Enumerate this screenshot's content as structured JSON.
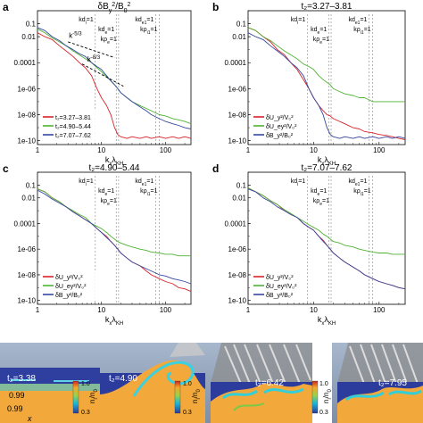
{
  "panel_letters": [
    "a",
    "b",
    "c",
    "d"
  ],
  "x_ticks": [
    {
      "v": 1,
      "label": "1"
    },
    {
      "v": 10,
      "label": "10"
    },
    {
      "v": 100,
      "label": "100"
    }
  ],
  "y_ticks": [
    {
      "v": 0.1,
      "label": "0.1"
    },
    {
      "v": 0.01,
      "label": "0.01"
    },
    {
      "v": 0.0001,
      "label": "0.0001"
    },
    {
      "v": 1e-06,
      "label": "1e-06"
    },
    {
      "v": 1e-08,
      "label": "1e-08"
    },
    {
      "v": 1e-10,
      "label": "1e-10"
    }
  ],
  "scale_lines": [
    {
      "label": "kd",
      "sub": "i",
      "rest": "=1",
      "x": 8
    },
    {
      "label": "kd",
      "sub": "e",
      "rest": "=1",
      "x": 17
    },
    {
      "label": "kρ",
      "sub": "e",
      "rest": "=1",
      "x": 18.5
    },
    {
      "label": "kd",
      "sub": "e1",
      "rest": "=1",
      "x": 70
    },
    {
      "label": "kρ",
      "sub": "i1",
      "rest": "=1",
      "x": 80
    }
  ],
  "slope_labels": [
    {
      "text": "k",
      "sup": "-5/3"
    },
    {
      "text": "k",
      "sup": "-8/3"
    }
  ],
  "colors": {
    "red": "#d8232a",
    "green": "#4fb234",
    "blue": "#3647a0"
  },
  "chart_data": [
    {
      "type": "line",
      "panel": "a",
      "title": "δB",
      "title_sub": "y",
      "title_sup": "2",
      "title_rest": "/B",
      "title_rest_sub": "0",
      "title_rest_sup": "2",
      "xlabel": "k",
      "xlabel_sub": "x",
      "xlabel_rest": "λ",
      "xlabel_rest_sub": "KH",
      "log_x": true,
      "log_y": true,
      "xlim": [
        1,
        250
      ],
      "ylim": [
        5e-11,
        1
      ],
      "legend": "bottom-left",
      "series": [
        {
          "name": "t₂=3.27–3.81",
          "color": "red",
          "x": [
            1,
            1.3,
            1.7,
            2.2,
            2.8,
            3.6,
            4.5,
            5.6,
            7,
            8.5,
            10,
            12,
            14,
            16,
            18,
            20,
            25,
            30,
            40,
            50,
            60,
            80,
            100,
            130,
            160,
            200,
            250
          ],
          "y": [
            0.02,
            0.01,
            0.006,
            0.002,
            0.0008,
            0.0003,
            0.0001,
            4e-05,
            1e-05,
            1e-06,
            2e-07,
            5e-08,
            1e-08,
            1e-09,
            3e-10,
            2e-10,
            1.5e-10,
            2e-10,
            1.5e-10,
            2e-10,
            1.5e-10,
            2e-10,
            1.5e-10,
            2e-10,
            1.5e-10,
            2e-10,
            1.5e-10
          ]
        },
        {
          "name": "t₂=4.90–5.44",
          "color": "green",
          "x": [
            1,
            1.3,
            1.7,
            2.2,
            2.8,
            3.6,
            4.5,
            5.6,
            7,
            8.5,
            10,
            12,
            14,
            16,
            18,
            20,
            25,
            30,
            40,
            50,
            60,
            80,
            100,
            130,
            160,
            200,
            250
          ],
          "y": [
            0.04,
            0.02,
            0.008,
            0.004,
            0.002,
            0.0008,
            0.0004,
            0.0002,
            0.0001,
            4e-05,
            2e-05,
            8e-06,
            4e-06,
            2e-06,
            1e-06,
            5e-07,
            2e-07,
            1e-07,
            5e-08,
            3e-08,
            2e-08,
            1e-08,
            8e-09,
            5e-09,
            4e-09,
            3e-09,
            2e-09
          ]
        },
        {
          "name": "t₂=7.07–7.62",
          "color": "blue",
          "x": [
            1,
            1.3,
            1.7,
            2.2,
            2.8,
            3.6,
            4.5,
            5.6,
            7,
            8.5,
            10,
            12,
            14,
            16,
            18,
            20,
            25,
            30,
            40,
            50,
            60,
            80,
            100,
            130,
            160,
            200,
            250
          ],
          "y": [
            0.05,
            0.03,
            0.01,
            0.005,
            0.002,
            0.001,
            0.0005,
            0.0003,
            0.0001,
            5e-05,
            3e-05,
            1e-05,
            4e-06,
            2e-06,
            1e-06,
            5e-07,
            2e-07,
            1e-07,
            4e-08,
            2e-08,
            1e-08,
            5e-09,
            3e-09,
            2e-09,
            1.5e-09,
            1e-09,
            8e-10
          ]
        }
      ],
      "slope_guides": true
    },
    {
      "type": "line",
      "panel": "b",
      "title": "t₂=3.27–3.81",
      "xlabel": "k",
      "xlabel_sub": "x",
      "xlabel_rest": "λ",
      "xlabel_rest_sub": "KH",
      "log_x": true,
      "log_y": true,
      "xlim": [
        1,
        250
      ],
      "ylim": [
        5e-11,
        1
      ],
      "legend": "bottom-left",
      "series": [
        {
          "name": "δU_y²/V₀²",
          "color": "red",
          "x": [
            1,
            1.3,
            1.7,
            2.2,
            2.8,
            3.6,
            4.5,
            5.6,
            7,
            8.5,
            10,
            12,
            14,
            16,
            18,
            20,
            25,
            30,
            40,
            50,
            60,
            80,
            100,
            130,
            160,
            200,
            250
          ],
          "y": [
            0.05,
            0.03,
            0.01,
            0.004,
            0.001,
            0.0004,
            0.0001,
            3e-05,
            5e-06,
            1e-06,
            2e-07,
            5e-08,
            2e-08,
            1e-08,
            8e-09,
            5e-09,
            3e-09,
            2e-09,
            1e-09,
            8e-10,
            5e-10,
            4e-10,
            3e-10,
            2.5e-10,
            2e-10,
            1.5e-10,
            1.2e-10
          ]
        },
        {
          "name": "δU_ey²/V₀²",
          "color": "green",
          "x": [
            1,
            1.3,
            1.7,
            2.2,
            2.8,
            3.6,
            4.5,
            5.6,
            7,
            8.5,
            10,
            12,
            14,
            16,
            18,
            20,
            25,
            30,
            40,
            50,
            60,
            80,
            100,
            130,
            160,
            200,
            250
          ],
          "y": [
            0.05,
            0.03,
            0.01,
            0.005,
            0.002,
            0.0008,
            0.0004,
            0.0002,
            8e-05,
            5e-05,
            3e-05,
            1e-05,
            5e-06,
            3e-06,
            2e-06,
            1e-06,
            6e-07,
            4e-07,
            3e-07,
            2e-07,
            2e-07,
            1e-07,
            1e-07,
            1e-07,
            1e-07,
            1e-07,
            1e-07
          ]
        },
        {
          "name": "δB_y²/B₀²",
          "color": "blue",
          "x": [
            1,
            1.3,
            1.7,
            2.2,
            2.8,
            3.6,
            4.5,
            5.6,
            7,
            8.5,
            10,
            12,
            14,
            16,
            18,
            20,
            25,
            30,
            40,
            50,
            60,
            80,
            100,
            130,
            160,
            200,
            250
          ],
          "y": [
            0.02,
            0.01,
            0.006,
            0.002,
            0.0008,
            0.0003,
            0.0001,
            4e-05,
            1e-05,
            1e-06,
            2e-07,
            5e-08,
            1e-08,
            1e-09,
            3e-10,
            2e-10,
            1.5e-10,
            2e-10,
            1.5e-10,
            2e-10,
            1.5e-10,
            2e-10,
            1.5e-10,
            2e-10,
            1.5e-10,
            2e-10,
            1.5e-10
          ]
        }
      ]
    },
    {
      "type": "line",
      "panel": "c",
      "title": "t₂=4.90–5.44",
      "xlabel": "k",
      "xlabel_sub": "x",
      "xlabel_rest": "λ",
      "xlabel_rest_sub": "KH",
      "log_x": true,
      "log_y": true,
      "xlim": [
        1,
        250
      ],
      "ylim": [
        5e-11,
        1
      ],
      "legend": "bottom-left",
      "series": [
        {
          "name": "δU_y²/V₀²",
          "color": "red",
          "x": [
            1,
            1.3,
            1.7,
            2.2,
            2.8,
            3.6,
            4.5,
            5.6,
            7,
            8.5,
            10,
            12,
            14,
            16,
            18,
            20,
            25,
            30,
            40,
            50,
            60,
            80,
            100,
            130,
            160,
            200,
            250
          ],
          "y": [
            0.05,
            0.03,
            0.01,
            0.005,
            0.002,
            0.0008,
            0.0004,
            0.0002,
            0.0001,
            4e-05,
            2e-05,
            1e-05,
            4e-06,
            2e-06,
            1e-06,
            5e-07,
            2e-07,
            1e-07,
            5e-08,
            2e-08,
            1e-08,
            5e-09,
            3e-09,
            2e-09,
            1e-09,
            8e-10,
            5e-10
          ]
        },
        {
          "name": "δU_ey²/V₀²",
          "color": "green",
          "x": [
            1,
            1.3,
            1.7,
            2.2,
            2.8,
            3.6,
            4.5,
            5.6,
            7,
            8.5,
            10,
            12,
            14,
            16,
            18,
            20,
            25,
            30,
            40,
            50,
            60,
            80,
            100,
            130,
            160,
            200,
            250
          ],
          "y": [
            0.05,
            0.03,
            0.01,
            0.005,
            0.002,
            0.001,
            0.0005,
            0.0003,
            0.0001,
            6e-05,
            4e-05,
            2e-05,
            1e-05,
            6e-06,
            4e-06,
            3e-06,
            2e-06,
            1.5e-06,
            1e-06,
            8e-07,
            6e-07,
            5e-07,
            4e-07,
            4e-07,
            3e-07,
            3e-07,
            3e-07
          ]
        },
        {
          "name": "δB_y²/B₀²",
          "color": "blue",
          "x": [
            1,
            1.3,
            1.7,
            2.2,
            2.8,
            3.6,
            4.5,
            5.6,
            7,
            8.5,
            10,
            12,
            14,
            16,
            18,
            20,
            25,
            30,
            40,
            50,
            60,
            80,
            100,
            130,
            160,
            200,
            250
          ],
          "y": [
            0.04,
            0.02,
            0.008,
            0.004,
            0.002,
            0.0008,
            0.0004,
            0.0002,
            0.0001,
            4e-05,
            2e-05,
            8e-06,
            4e-06,
            2e-06,
            1e-06,
            5e-07,
            2e-07,
            1e-07,
            5e-08,
            3e-08,
            2e-08,
            1e-08,
            8e-09,
            5e-09,
            4e-09,
            3e-09,
            2e-09
          ]
        }
      ]
    },
    {
      "type": "line",
      "panel": "d",
      "title": "t₂=7.07–7.62",
      "xlabel": "k",
      "xlabel_sub": "x",
      "xlabel_rest": "λ",
      "xlabel_rest_sub": "KH",
      "log_x": true,
      "log_y": true,
      "xlim": [
        1,
        250
      ],
      "ylim": [
        5e-11,
        1
      ],
      "legend": "bottom-left",
      "series": [
        {
          "name": "δU_y²/V₀²",
          "color": "red",
          "x": [
            1,
            1.3,
            1.7,
            2.2,
            2.8,
            3.6,
            4.5,
            5.6,
            7,
            8.5,
            10,
            12,
            14,
            16,
            18,
            20,
            25,
            30,
            40,
            50,
            60,
            80,
            100,
            130,
            160,
            200,
            250
          ],
          "y": [
            0.06,
            0.03,
            0.015,
            0.006,
            0.003,
            0.001,
            0.0005,
            0.0003,
            0.0001,
            5e-05,
            3e-05,
            1e-05,
            5e-06,
            2e-06,
            1e-06,
            5e-07,
            2e-07,
            1e-07,
            4e-08,
            2e-08,
            1e-08,
            5e-09,
            3e-09,
            2e-09,
            1.5e-09,
            1e-09,
            8e-10
          ]
        },
        {
          "name": "δU_ey²/V₀²",
          "color": "green",
          "x": [
            1,
            1.3,
            1.7,
            2.2,
            2.8,
            3.6,
            4.5,
            5.6,
            7,
            8.5,
            10,
            12,
            14,
            16,
            18,
            20,
            25,
            30,
            40,
            50,
            60,
            80,
            100,
            130,
            160,
            200,
            250
          ],
          "y": [
            0.06,
            0.03,
            0.015,
            0.006,
            0.003,
            0.0012,
            0.0006,
            0.0003,
            0.00015,
            8e-05,
            5e-05,
            3e-05,
            1.5e-05,
            1e-05,
            6e-06,
            4e-06,
            3e-06,
            2e-06,
            1.5e-06,
            1e-06,
            8e-07,
            6e-07,
            5e-07,
            5e-07,
            4e-07,
            4e-07,
            4e-07
          ]
        },
        {
          "name": "δB_y²/B₀²",
          "color": "blue",
          "x": [
            1,
            1.3,
            1.7,
            2.2,
            2.8,
            3.6,
            4.5,
            5.6,
            7,
            8.5,
            10,
            12,
            14,
            16,
            18,
            20,
            25,
            30,
            40,
            50,
            60,
            80,
            100,
            130,
            160,
            200,
            250
          ],
          "y": [
            0.05,
            0.03,
            0.01,
            0.005,
            0.002,
            0.001,
            0.0005,
            0.0003,
            0.0001,
            5e-05,
            3e-05,
            1e-05,
            4e-06,
            2e-06,
            1e-06,
            5e-07,
            2e-07,
            1e-07,
            4e-08,
            2e-08,
            1e-08,
            5e-09,
            3e-09,
            2e-09,
            1.5e-09,
            1e-09,
            8e-10
          ]
        }
      ]
    }
  ],
  "snapshots": [
    {
      "time_label": "t₂=3.38"
    },
    {
      "time_label": "t₂=4.90"
    },
    {
      "time_label": "t₂=6.42"
    },
    {
      "time_label": "t₂=7.95"
    }
  ],
  "snapshot_annotations": {
    "left_labels": [
      "0.99",
      "0.99"
    ],
    "axis_letter": "x"
  },
  "colorbar_labels": [
    {
      "top": "1.0",
      "bottom": "0.3",
      "axis": "n",
      "axis_sub": "i",
      "axis_rest": "/n",
      "axis_rest_sub": "0"
    },
    {
      "top": "1.0",
      "bottom": "0.3",
      "axis": "n",
      "axis_sub": "i",
      "axis_rest": "/n",
      "axis_rest_sub": "0"
    },
    {
      "top": "1.0",
      "bottom": "0.3",
      "axis": "n",
      "axis_sub": "i",
      "axis_rest": "/n",
      "axis_rest_sub": "0"
    }
  ]
}
